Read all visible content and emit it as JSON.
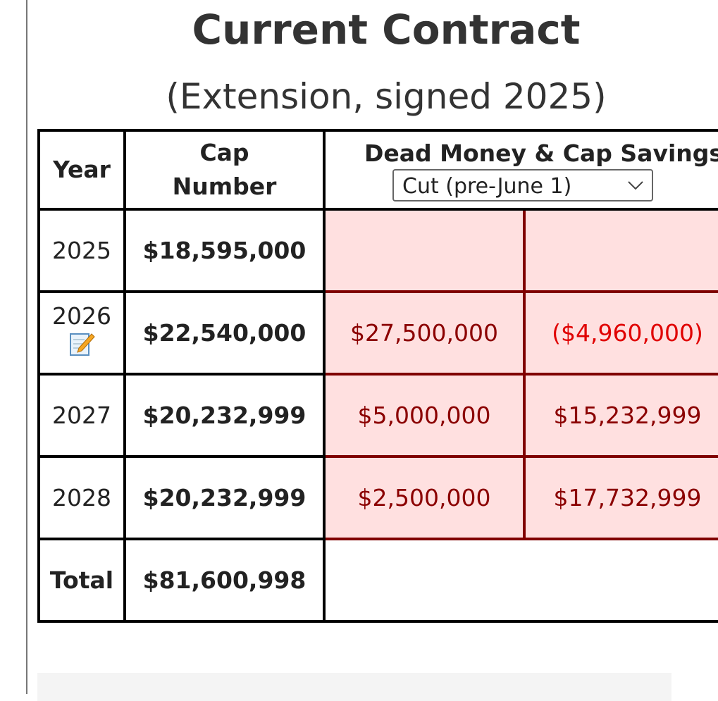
{
  "header": {
    "title": "Current Contract",
    "subtitle": "(Extension, signed 2025)"
  },
  "table": {
    "columns": {
      "year": "Year",
      "cap_number": "Cap Number",
      "dead_money": "Dead Money & Cap Savings"
    },
    "dropdown": "Cut (pre-June 1)",
    "rows": [
      {
        "year": "2025",
        "cap_number": "$18,595,000"
      },
      {
        "year": "2026",
        "cap_number": "$22,540,000",
        "dead_money": "$27,500,000",
        "cap_savings": "($4,960,000)"
      },
      {
        "year": "2027",
        "cap_number": "$20,232,999",
        "dead_money": "$5,000,000",
        "cap_savings": "$15,232,999"
      },
      {
        "year": "2028",
        "cap_number": "$20,232,999",
        "dead_money": "$2,500,000",
        "cap_savings": "$17,732,999"
      }
    ],
    "total": {
      "label": "Total",
      "cap_number": "$81,600,998"
    }
  }
}
